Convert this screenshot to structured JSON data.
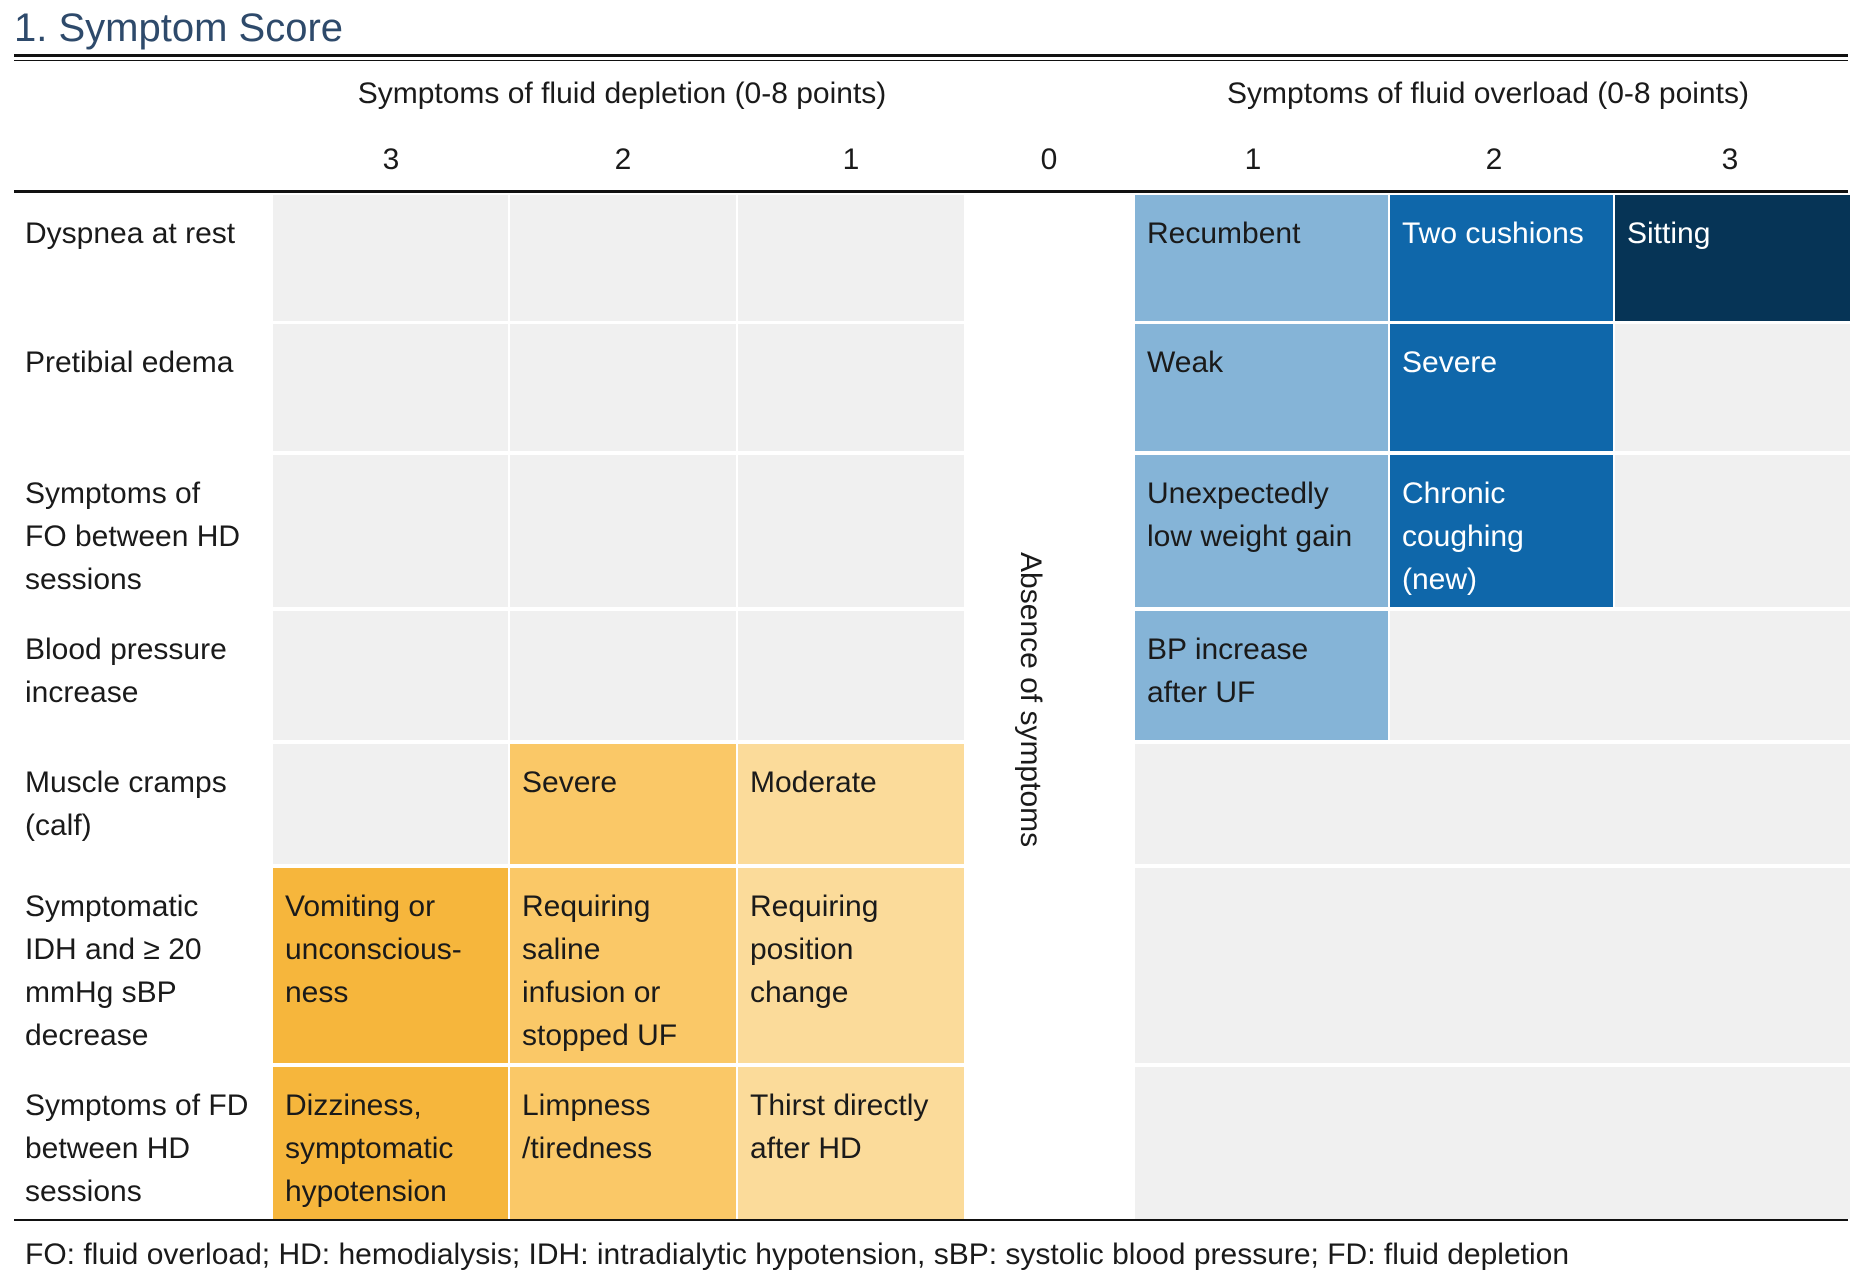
{
  "title": "1. Symptom Score",
  "groups": {
    "depletion": "Symptoms of fluid depletion (0-8 points)",
    "overload": "Symptoms of fluid overload (0-8 points)"
  },
  "scores": {
    "dep3": "3",
    "dep2": "2",
    "dep1": "1",
    "zero": "0",
    "ov1": "1",
    "ov2": "2",
    "ov3": "3"
  },
  "absence_label": "Absence of symptoms",
  "rows": [
    {
      "label": [
        "Dyspnea at rest"
      ],
      "depletion": [
        [],
        [],
        []
      ],
      "overload": [
        [
          "Recumbent"
        ],
        [
          "Two cushions"
        ],
        [
          "Sitting"
        ]
      ]
    },
    {
      "label": [
        "Pretibial edema"
      ],
      "depletion": [
        [],
        [],
        []
      ],
      "overload": [
        [
          "Weak"
        ],
        [
          "Severe"
        ],
        []
      ]
    },
    {
      "label": [
        "Symptoms of",
        "FO between HD",
        "sessions"
      ],
      "depletion": [
        [],
        [],
        []
      ],
      "overload": [
        [
          "Unexpectedly",
          "low weight gain"
        ],
        [
          "Chronic",
          "coughing",
          "(new)"
        ],
        []
      ]
    },
    {
      "label": [
        "Blood pressure",
        "increase"
      ],
      "depletion": [
        [],
        [],
        []
      ],
      "overload": [
        [
          "BP increase",
          "after UF"
        ],
        [],
        []
      ]
    },
    {
      "label": [
        "Muscle cramps",
        "(calf)"
      ],
      "depletion": [
        [],
        [
          "Severe"
        ],
        [
          "Moderate"
        ]
      ],
      "overload": [
        [],
        [],
        []
      ]
    },
    {
      "label": [
        "Symptomatic",
        "IDH and ≥ 20",
        "mmHg sBP",
        "decrease"
      ],
      "depletion": [
        [
          "Vomiting or",
          "unconscious-",
          "ness"
        ],
        [
          "Requiring",
          "saline",
          "infusion or",
          "stopped UF"
        ],
        [
          "Requiring",
          "position",
          "change"
        ]
      ],
      "overload": [
        [],
        [],
        []
      ]
    },
    {
      "label": [
        "Symptoms of FD",
        "between HD",
        "sessions"
      ],
      "depletion": [
        [
          "Dizziness,",
          "symptomatic",
          "hypotension"
        ],
        [
          "Limpness",
          "/tiredness"
        ],
        [
          "Thirst directly",
          "after HD"
        ]
      ],
      "overload": [
        [],
        [],
        []
      ]
    }
  ],
  "footnote": "FO: fluid overload; HD: hemodialysis; IDH: intradialytic hypotension, sBP: systolic blood pressure; FD: fluid depletion",
  "colors": {
    "title": "#2e4a6b",
    "empty": "#f0f0f0",
    "overload_1": "#85b4d7",
    "overload_2": "#0f67aa",
    "overload_3": "#063456",
    "depletion_1": "#fbdb9a",
    "depletion_2": "#fac867",
    "depletion_3": "#f6b63c"
  }
}
